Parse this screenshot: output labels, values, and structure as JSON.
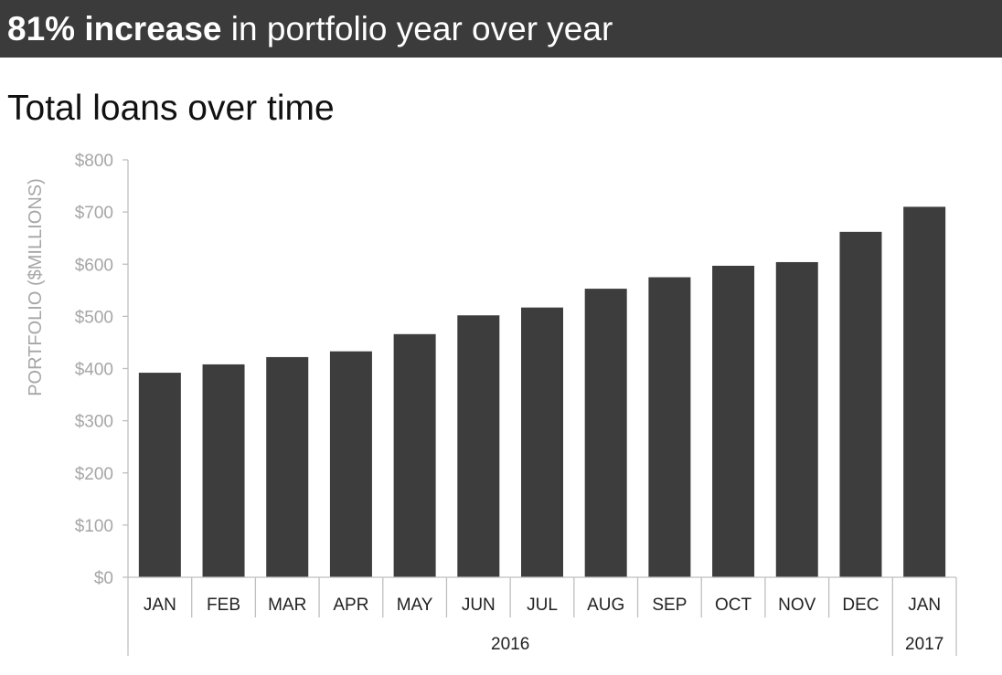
{
  "banner": {
    "bold": "81% increase",
    "rest": " in portfolio year over year"
  },
  "colors": {
    "bar": "#3d3d3d",
    "banner_bg": "#3b3b3b",
    "axis_text": "#a6a6a6"
  },
  "chart_data": {
    "type": "bar",
    "title": "Total loans over time",
    "xlabel": "",
    "ylabel": "PORTFOLIO ($MILLIONS)",
    "categories": [
      "JAN",
      "FEB",
      "MAR",
      "APR",
      "MAY",
      "JUN",
      "JUL",
      "AUG",
      "SEP",
      "OCT",
      "NOV",
      "DEC",
      "JAN"
    ],
    "values": [
      392,
      408,
      422,
      433,
      466,
      502,
      517,
      553,
      575,
      597,
      604,
      662,
      710
    ],
    "year_groups": [
      {
        "label": "2016",
        "count": 12
      },
      {
        "label": "2017",
        "count": 1
      }
    ],
    "ylim": [
      0,
      800
    ],
    "yticks": [
      0,
      100,
      200,
      300,
      400,
      500,
      600,
      700,
      800
    ],
    "ytick_labels": [
      "$0",
      "$100",
      "$200",
      "$300",
      "$400",
      "$500",
      "$600",
      "$700",
      "$800"
    ],
    "grid": false,
    "legend": "none"
  }
}
